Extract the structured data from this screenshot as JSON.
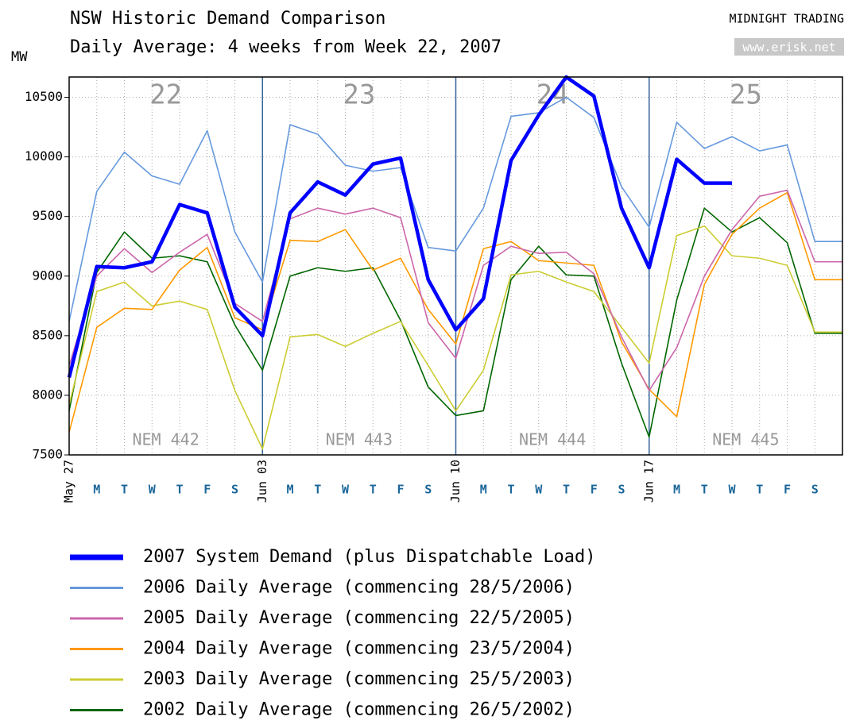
{
  "chart_data": {
    "type": "line",
    "title": "NSW Historic Demand Comparison",
    "subtitle": "Daily Average: 4 weeks from Week 22, 2007",
    "brand": "MIDNIGHT TRADING",
    "website": "www.erisk.net",
    "ylabel": "MW",
    "week_labels": [
      "22",
      "23",
      "24",
      "25"
    ],
    "period_labels": [
      "NEM 442",
      "NEM 443",
      "NEM 444",
      "NEM 445"
    ],
    "categories": [
      "May 27",
      "M",
      "T",
      "W",
      "T",
      "F",
      "S",
      "Jun 03",
      "M",
      "T",
      "W",
      "T",
      "F",
      "S",
      "Jun 10",
      "M",
      "T",
      "W",
      "T",
      "F",
      "S",
      "Jun 17",
      "M",
      "T",
      "W",
      "T",
      "F",
      "S",
      null
    ],
    "ylim": [
      7500,
      10670
    ],
    "yticks": [
      7500,
      8000,
      8500,
      9000,
      9500,
      10000,
      10500
    ],
    "grid": true,
    "legend": "bottom",
    "series": [
      {
        "name": "2007 System Demand (plus Dispatchable Load)",
        "color": "#0000ff",
        "values": [
          8150,
          9080,
          9070,
          9120,
          9600,
          9530,
          8740,
          8500,
          9530,
          9790,
          9680,
          9940,
          9990,
          8970,
          8550,
          8810,
          9970,
          10350,
          10670,
          10510,
          9570,
          9070,
          9980,
          9780,
          9780,
          null,
          null,
          null,
          null
        ]
      },
      {
        "name": "2006 Daily Average (commencing 28/5/2006)",
        "color": "#6699dd",
        "values": [
          8620,
          9710,
          10040,
          9840,
          9770,
          10220,
          9370,
          8950,
          10270,
          10190,
          9930,
          9880,
          9910,
          9240,
          9210,
          9570,
          10340,
          10370,
          10500,
          10330,
          9750,
          9410,
          10290,
          10070,
          10170,
          10050,
          10100,
          9290,
          9290
        ]
      },
      {
        "name": "2005 Daily Average (commencing 22/5/2005)",
        "color": "#cc66aa",
        "values": [
          8250,
          9000,
          9230,
          9030,
          9200,
          9350,
          8770,
          8620,
          9480,
          9570,
          9520,
          9570,
          9490,
          8610,
          8310,
          9090,
          9250,
          9190,
          9200,
          9020,
          8490,
          8040,
          8400,
          9000,
          9390,
          9670,
          9720,
          9120,
          9120
        ]
      },
      {
        "name": "2004 Daily Average (commencing 23/5/2004)",
        "color": "#ff9900",
        "values": [
          7690,
          8570,
          8730,
          8720,
          9050,
          9240,
          8650,
          8550,
          9300,
          9290,
          9390,
          9050,
          9150,
          8720,
          8430,
          9230,
          9290,
          9130,
          9110,
          9090,
          8450,
          8050,
          7820,
          8930,
          9350,
          9570,
          9700,
          8970,
          8970
        ]
      },
      {
        "name": "2003 Daily Average (commencing 25/5/2003)",
        "color": "#cccc33",
        "values": [
          7920,
          8870,
          8950,
          8750,
          8790,
          8720,
          8040,
          7550,
          8490,
          8510,
          8410,
          8520,
          8620,
          8250,
          7870,
          8210,
          9010,
          9040,
          8950,
          8870,
          8570,
          8270,
          9340,
          9420,
          9170,
          9150,
          9090,
          8530,
          8530
        ]
      },
      {
        "name": "2002 Daily Average (commencing 26/5/2002)",
        "color": "#006600",
        "values": [
          7870,
          9030,
          9370,
          9150,
          9170,
          9120,
          8590,
          8210,
          9000,
          9070,
          9040,
          9070,
          8630,
          8070,
          7830,
          7870,
          8970,
          9250,
          9010,
          9000,
          8270,
          7650,
          8800,
          9570,
          9370,
          9490,
          9280,
          8520,
          8520
        ]
      }
    ]
  }
}
